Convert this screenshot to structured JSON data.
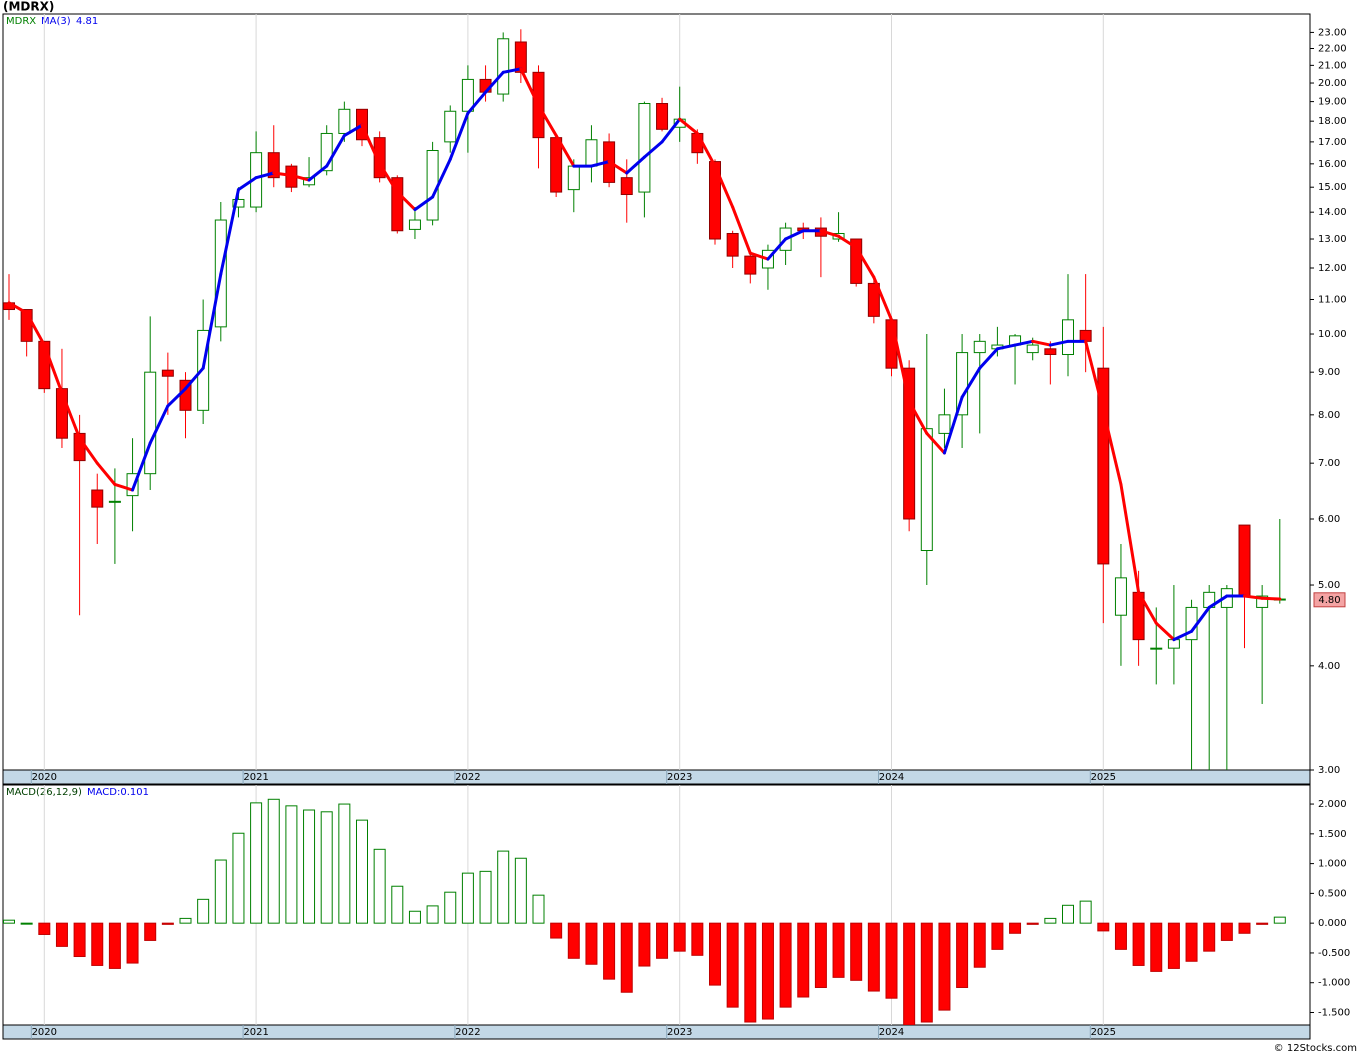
{
  "title": "(MDRX)",
  "footer": "© 12Stocks.com",
  "chart_data": [
    {
      "type": "candlestick",
      "legend": {
        "symbol": "MDRX",
        "ma_name": "MA(3)",
        "ma_value": 4.81
      },
      "categories": [
        null,
        null,
        "2020",
        null,
        null,
        null,
        null,
        null,
        null,
        null,
        null,
        null,
        null,
        null,
        "2021",
        null,
        null,
        null,
        null,
        null,
        null,
        null,
        null,
        null,
        null,
        null,
        "2022",
        null,
        null,
        null,
        null,
        null,
        null,
        null,
        null,
        null,
        null,
        null,
        "2023",
        null,
        null,
        null,
        null,
        null,
        null,
        null,
        null,
        null,
        null,
        null,
        "2024",
        null,
        null,
        null,
        null,
        null,
        null,
        null,
        null,
        null,
        null,
        null,
        "2025",
        null,
        null,
        null,
        null,
        null,
        null,
        null,
        null,
        null,
        null
      ],
      "open": [
        10.9,
        10.7,
        9.8,
        8.6,
        7.6,
        6.5,
        6.3,
        6.4,
        6.8,
        9.05,
        8.8,
        8.1,
        10.2,
        14.2,
        14.2,
        16.5,
        15.9,
        15.1,
        15.7,
        17.4,
        18.6,
        17.2,
        15.4,
        13.35,
        13.7,
        17.0,
        18.5,
        20.2,
        19.4,
        22.4,
        20.6,
        17.2,
        14.9,
        15.9,
        17.0,
        15.4,
        14.8,
        18.9,
        17.7,
        17.4,
        16.1,
        13.2,
        12.4,
        12.0,
        12.6,
        13.4,
        13.4,
        13.0,
        13.0,
        11.5,
        10.4,
        9.1,
        5.5,
        7.6,
        8.0,
        9.5,
        9.6,
        9.7,
        9.5,
        9.6,
        9.45,
        10.1,
        9.1,
        4.6,
        4.9,
        4.2,
        4.2,
        4.3,
        4.7,
        4.7,
        5.9,
        4.7,
        4.8
      ],
      "high": [
        11.8,
        10.7,
        9.8,
        9.6,
        8.0,
        6.8,
        6.9,
        7.5,
        10.5,
        9.5,
        9.0,
        11.0,
        14.4,
        15.0,
        17.5,
        17.8,
        16.0,
        16.3,
        17.8,
        19.0,
        18.6,
        17.5,
        15.5,
        14.2,
        17.0,
        18.8,
        21.0,
        21.0,
        23.0,
        23.2,
        21.0,
        17.3,
        16.2,
        17.8,
        17.4,
        16.2,
        19.0,
        19.2,
        19.8,
        17.6,
        16.2,
        13.3,
        12.5,
        12.8,
        13.6,
        13.6,
        13.8,
        14.0,
        13.0,
        11.7,
        10.5,
        9.3,
        10.0,
        8.6,
        10.0,
        10.0,
        10.2,
        10.0,
        9.9,
        9.8,
        11.8,
        11.8,
        10.2,
        5.6,
        5.2,
        4.7,
        5.0,
        4.8,
        5.0,
        5.0,
        5.9,
        5.0,
        6.0
      ],
      "low": [
        10.4,
        9.4,
        8.5,
        7.3,
        4.6,
        5.6,
        5.3,
        5.8,
        6.5,
        8.0,
        7.5,
        7.8,
        9.8,
        13.8,
        14.0,
        15.0,
        14.8,
        15.0,
        15.5,
        17.0,
        16.8,
        15.2,
        13.2,
        13.0,
        13.5,
        16.5,
        16.5,
        19.0,
        19.0,
        20.0,
        15.8,
        14.6,
        14.0,
        15.2,
        15.0,
        13.6,
        13.8,
        17.5,
        17.0,
        16.0,
        12.8,
        12.0,
        11.5,
        11.3,
        12.1,
        13.0,
        11.7,
        12.9,
        11.4,
        10.3,
        8.9,
        5.8,
        5.0,
        7.3,
        7.3,
        7.6,
        9.4,
        8.7,
        9.3,
        8.7,
        8.9,
        9.0,
        4.5,
        4.0,
        4.0,
        3.8,
        3.8,
        3.0,
        3.0,
        3.0,
        4.2,
        3.6,
        4.75
      ],
      "close": [
        10.7,
        9.8,
        8.6,
        7.5,
        7.05,
        6.2,
        6.3,
        6.8,
        9.0,
        8.9,
        8.1,
        10.1,
        13.7,
        14.5,
        16.5,
        15.4,
        15.0,
        15.4,
        17.4,
        18.6,
        17.1,
        15.4,
        13.3,
        13.7,
        16.6,
        18.5,
        20.2,
        19.5,
        22.6,
        20.6,
        17.2,
        14.8,
        15.9,
        17.1,
        15.2,
        14.7,
        18.9,
        17.6,
        18.1,
        16.5,
        13.0,
        12.4,
        11.8,
        12.6,
        13.4,
        13.3,
        13.1,
        13.2,
        11.5,
        10.5,
        9.1,
        6.0,
        7.7,
        8.0,
        9.5,
        9.8,
        9.7,
        9.95,
        9.7,
        9.45,
        10.4,
        9.8,
        5.3,
        5.1,
        4.3,
        4.2,
        4.3,
        4.7,
        4.9,
        4.95,
        4.85,
        4.85,
        4.81
      ],
      "up_color": "#008000",
      "down_color": "#ff0000",
      "ma": {
        "values": [
          10.9,
          10.6,
          9.7,
          8.5,
          7.5,
          7.0,
          6.6,
          6.5,
          7.4,
          8.2,
          8.6,
          9.1,
          11.8,
          14.9,
          15.4,
          15.6,
          15.5,
          15.3,
          15.9,
          17.3,
          17.8,
          16.0,
          14.8,
          14.1,
          14.6,
          16.2,
          18.4,
          19.5,
          20.6,
          20.8,
          18.8,
          17.3,
          15.9,
          15.9,
          16.1,
          15.6,
          16.3,
          17.0,
          18.1,
          17.4,
          15.9,
          14.2,
          12.5,
          12.3,
          13.0,
          13.3,
          13.3,
          13.1,
          12.7,
          11.7,
          10.4,
          8.3,
          7.6,
          7.2,
          8.4,
          9.1,
          9.6,
          9.7,
          9.8,
          9.7,
          9.8,
          9.8,
          8.1,
          6.6,
          4.9,
          4.5,
          4.3,
          4.4,
          4.7,
          4.85,
          4.85,
          4.82,
          4.81
        ],
        "up_color": "#0000ee",
        "down_color": "#ff0000"
      },
      "last_price": {
        "value": 4.8,
        "label": "4.80"
      },
      "ylim": [
        3,
        24.2
      ],
      "log_scale": true,
      "yticks": [
        {
          "value": 3,
          "label": "3.00"
        },
        {
          "value": 4,
          "label": "4.00"
        },
        {
          "value": 5,
          "label": "5.00"
        },
        {
          "value": 6,
          "label": "6.00"
        },
        {
          "value": 7,
          "label": "7.00"
        },
        {
          "value": 8,
          "label": "8.00"
        },
        {
          "value": 9,
          "label": "9.00"
        },
        {
          "value": 10,
          "label": "10.00"
        },
        {
          "value": 11,
          "label": "11.00"
        },
        {
          "value": 12,
          "label": "12.00"
        },
        {
          "value": 13,
          "label": "13.00"
        },
        {
          "value": 14,
          "label": "14.00"
        },
        {
          "value": 15,
          "label": "15.00"
        },
        {
          "value": 16,
          "label": "16.00"
        },
        {
          "value": 17,
          "label": "17.00"
        },
        {
          "value": 18,
          "label": "18.00"
        },
        {
          "value": 19,
          "label": "19.00"
        },
        {
          "value": 20,
          "label": "20.00"
        },
        {
          "value": 21,
          "label": "21.00"
        },
        {
          "value": 22,
          "label": "22.00"
        },
        {
          "value": 23,
          "label": "23.00"
        }
      ],
      "grid": false
    },
    {
      "type": "bar",
      "legend": {
        "name": "MACD(26,12,9)",
        "value_label": "MACD:0.101"
      },
      "categories": [
        null,
        null,
        "2020",
        null,
        null,
        null,
        null,
        null,
        null,
        null,
        null,
        null,
        null,
        null,
        "2021",
        null,
        null,
        null,
        null,
        null,
        null,
        null,
        null,
        null,
        null,
        null,
        "2022",
        null,
        null,
        null,
        null,
        null,
        null,
        null,
        null,
        null,
        null,
        null,
        "2023",
        null,
        null,
        null,
        null,
        null,
        null,
        null,
        null,
        null,
        null,
        null,
        "2024",
        null,
        null,
        null,
        null,
        null,
        null,
        null,
        null,
        null,
        null,
        null,
        "2025",
        null,
        null,
        null,
        null,
        null,
        null,
        null,
        null,
        null,
        null
      ],
      "values": [
        0.05,
        0.0,
        -0.19,
        -0.39,
        -0.56,
        -0.71,
        -0.76,
        -0.67,
        -0.29,
        -0.02,
        0.08,
        0.4,
        1.06,
        1.51,
        2.02,
        2.08,
        1.97,
        1.9,
        1.87,
        2.0,
        1.73,
        1.24,
        0.62,
        0.2,
        0.29,
        0.52,
        0.84,
        0.87,
        1.21,
        1.09,
        0.47,
        -0.25,
        -0.59,
        -0.69,
        -0.94,
        -1.16,
        -0.72,
        -0.59,
        -0.47,
        -0.54,
        -1.04,
        -1.41,
        -1.66,
        -1.61,
        -1.41,
        -1.24,
        -1.08,
        -0.91,
        -0.96,
        -1.14,
        -1.26,
        -1.71,
        -1.66,
        -1.46,
        -1.08,
        -0.74,
        -0.44,
        -0.17,
        -0.02,
        0.08,
        0.3,
        0.37,
        -0.13,
        -0.44,
        -0.71,
        -0.81,
        -0.76,
        -0.64,
        -0.47,
        -0.29,
        -0.17,
        -0.02,
        0.101
      ],
      "up_color": "#008000",
      "down_color": "#ff0000",
      "ylim": [
        -1.71,
        2.32
      ],
      "yticks": [
        {
          "value": 2,
          "label": "2.000"
        },
        {
          "value": 1.5,
          "label": "1.500"
        },
        {
          "value": 1,
          "label": "1.000"
        },
        {
          "value": 0.5,
          "label": "0.500"
        },
        {
          "value": 0,
          "label": "0.000"
        },
        {
          "value": -0.5,
          "label": "-0.500"
        },
        {
          "value": -1,
          "label": "-1.000"
        },
        {
          "value": -1.5,
          "label": "-1.500"
        }
      ],
      "grid": false
    }
  ]
}
